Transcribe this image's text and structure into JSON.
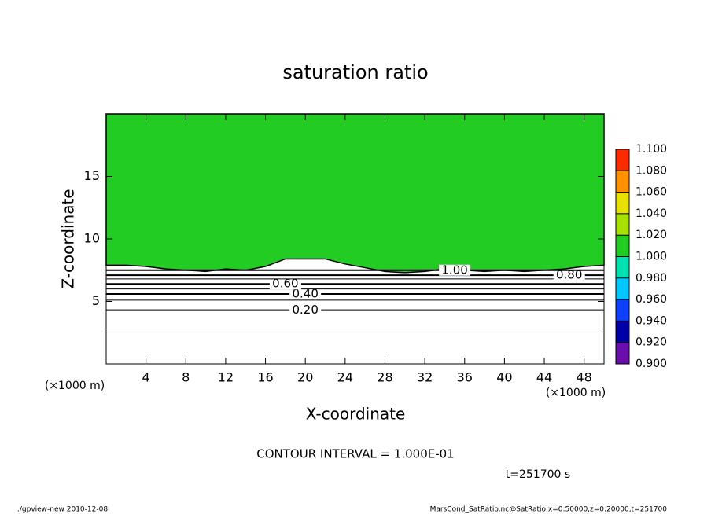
{
  "chart_data": {
    "type": "contour",
    "title": "saturation ratio",
    "x_label": "X-coordinate",
    "y_label": "Z-coordinate",
    "x_unit_left": "(×1000 m)",
    "x_unit_right": "(×1000 m)",
    "xlim": [
      0,
      50
    ],
    "ylim": [
      0,
      20
    ],
    "xticks": [
      4,
      8,
      12,
      16,
      20,
      24,
      28,
      32,
      36,
      40,
      44,
      48
    ],
    "yticks": [
      5,
      10,
      15
    ],
    "saturated_region": {
      "color": "#22cc22",
      "x": [
        0,
        2,
        4,
        6,
        8,
        10,
        12,
        14,
        16,
        18,
        20,
        22,
        24,
        26,
        28,
        30,
        32,
        34,
        36,
        38,
        40,
        42,
        44,
        46,
        48,
        50
      ],
      "z": [
        7.9,
        7.9,
        7.8,
        7.6,
        7.5,
        7.4,
        7.6,
        7.5,
        7.8,
        8.4,
        8.4,
        8.4,
        8.0,
        7.7,
        7.4,
        7.3,
        7.4,
        7.6,
        7.5,
        7.4,
        7.5,
        7.4,
        7.5,
        7.6,
        7.8,
        7.9
      ]
    },
    "contours": [
      {
        "level": 0.1,
        "z": 2.8
      },
      {
        "level": {
          "value": 0.2,
          "label": "0.20"
        },
        "z": 4.3
      },
      {
        "level": 0.3,
        "z": 5.1
      },
      {
        "level": {
          "value": 0.4,
          "label": "0.40"
        },
        "z": 5.6
      },
      {
        "level": 0.5,
        "z": 6.0
      },
      {
        "level": {
          "value": 0.6,
          "label": "0.60"
        },
        "z": 6.4
      },
      {
        "level": 0.7,
        "z": 6.8
      },
      {
        "level": {
          "value": 0.8,
          "label": "0.80"
        },
        "z": 7.1
      },
      {
        "level": {
          "value": 1.0,
          "label": "1.00"
        },
        "z": 7.5
      }
    ],
    "colorbar": {
      "levels": [
        {
          "value": 0.9,
          "label": "0.900"
        },
        {
          "value": 0.92,
          "label": "0.920"
        },
        {
          "value": 0.94,
          "label": "0.940"
        },
        {
          "value": 0.96,
          "label": "0.960"
        },
        {
          "value": 0.98,
          "label": "0.980"
        },
        {
          "value": 1.0,
          "label": "1.000"
        },
        {
          "value": 1.02,
          "label": "1.020"
        },
        {
          "value": 1.04,
          "label": "1.040"
        },
        {
          "value": 1.06,
          "label": "1.060"
        },
        {
          "value": 1.08,
          "label": "1.080"
        },
        {
          "value": 1.1,
          "label": "1.100"
        }
      ],
      "colors": [
        "#6a0dad",
        "#0000a8",
        "#1040ff",
        "#00c8ff",
        "#00e0b0",
        "#22cc22",
        "#a8e000",
        "#e8e000",
        "#ff9000",
        "#ff2a00"
      ]
    },
    "contour_interval_note": "CONTOUR INTERVAL = 1.000E-01",
    "time_note": "t=251700 s",
    "footer_left": "./gpview-new  2010-12-08",
    "footer_right": "MarsCond_SatRatio.nc@SatRatio,x=0:50000,z=0:20000,t=251700"
  }
}
